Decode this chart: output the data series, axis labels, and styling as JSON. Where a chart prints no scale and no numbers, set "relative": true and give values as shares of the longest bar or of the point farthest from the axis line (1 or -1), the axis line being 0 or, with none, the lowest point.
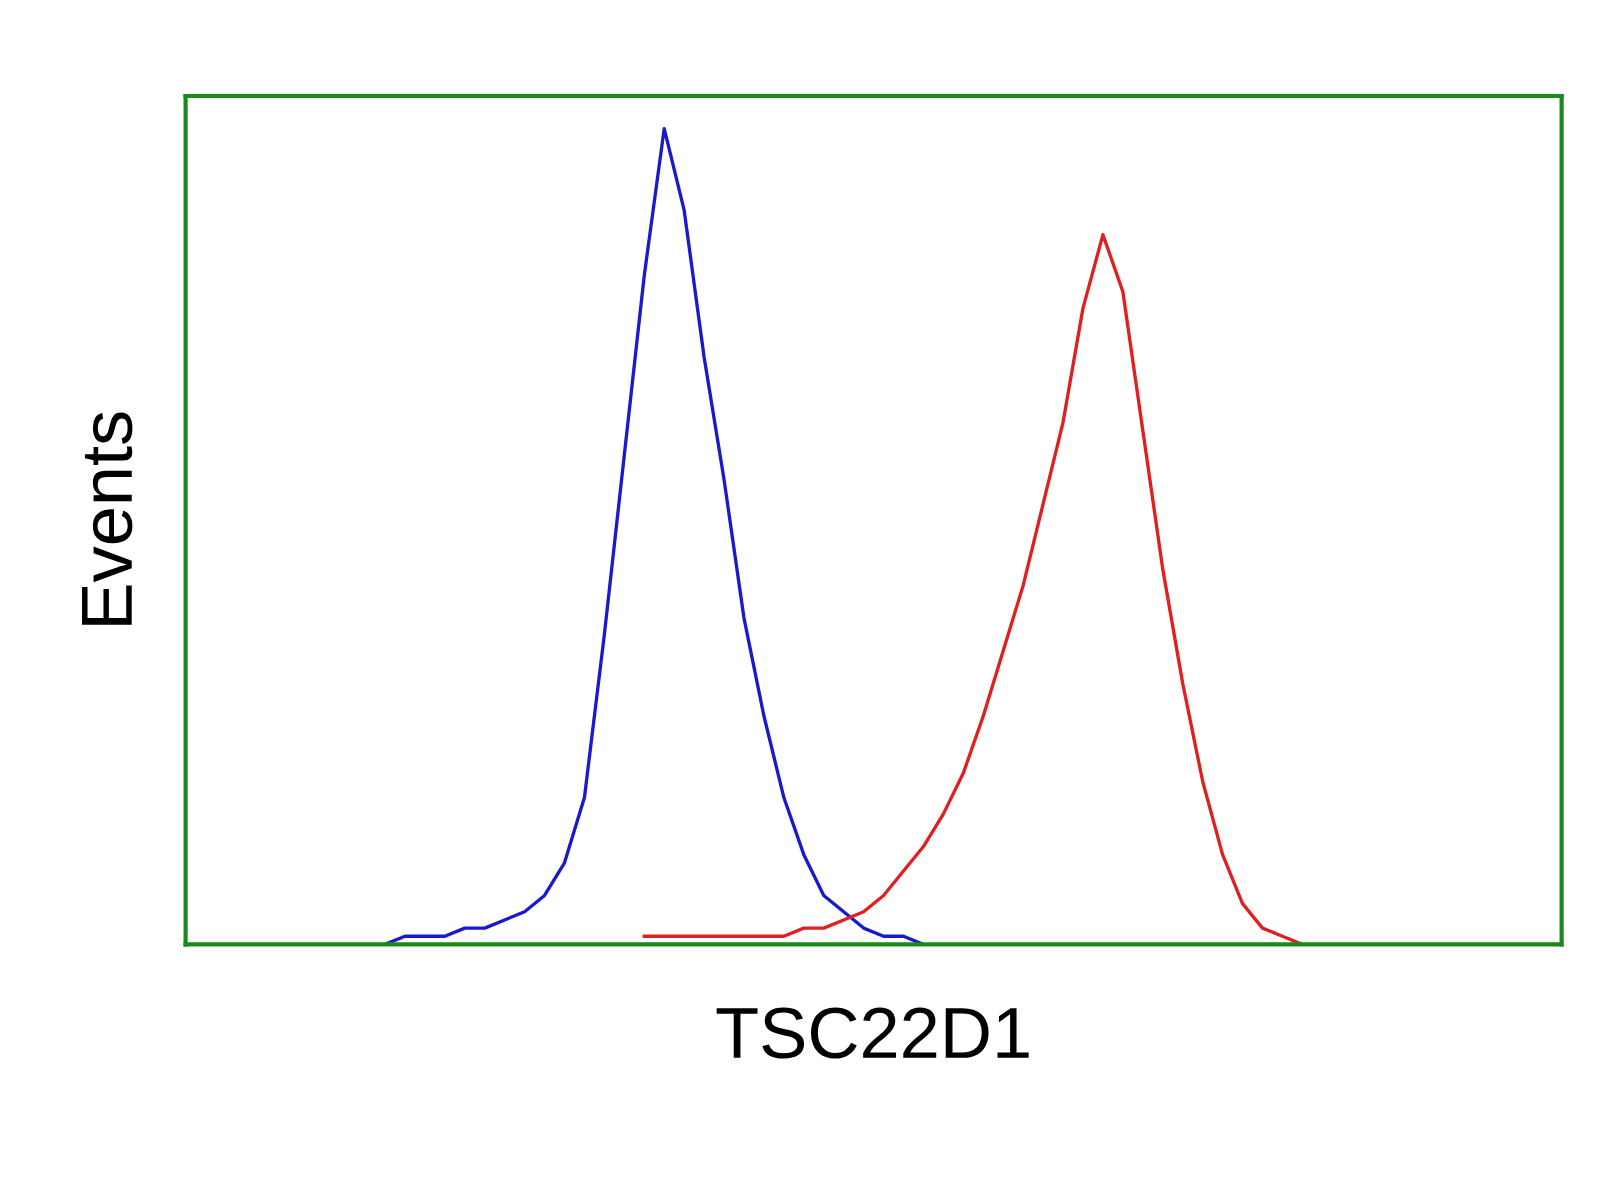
{
  "chart_data": {
    "type": "line",
    "xlabel": "TSC22D1",
    "ylabel": "Events",
    "relative": true,
    "tick_labels": false,
    "grid": false,
    "legend": false,
    "marker": "none",
    "line_style": "solid",
    "categories": [
      null,
      null,
      null,
      null,
      null,
      null,
      null,
      null,
      null,
      null,
      null,
      null,
      null,
      null,
      null,
      null,
      null,
      null,
      null,
      null,
      null,
      null,
      null,
      null,
      null,
      null,
      null,
      null,
      null,
      null,
      null,
      null,
      null,
      null,
      null,
      null,
      null,
      null,
      null,
      null,
      null,
      null,
      null,
      null,
      null,
      null,
      null,
      null,
      null,
      null,
      null,
      null,
      null,
      null,
      null,
      null,
      null,
      null,
      null,
      null,
      null,
      null,
      null,
      null,
      null,
      null,
      null,
      null,
      null,
      null
    ],
    "series": [
      {
        "color": "#1a1acc",
        "values": [
          null,
          null,
          null,
          null,
          null,
          null,
          null,
          null,
          null,
          null,
          0,
          0.01,
          0.01,
          0.01,
          0.02,
          0.02,
          0.03,
          0.04,
          0.06,
          0.1,
          0.18,
          0.38,
          0.6,
          0.82,
          1.0,
          0.9,
          0.72,
          0.57,
          0.4,
          0.28,
          0.18,
          0.11,
          0.06,
          0.04,
          0.02,
          0.01,
          0.01,
          0,
          null,
          null,
          null,
          null,
          null,
          null,
          null,
          null,
          null,
          null,
          null,
          null,
          null,
          null,
          null,
          null,
          null,
          null,
          null,
          null,
          null,
          null,
          null,
          null,
          null,
          null,
          null,
          null,
          null,
          null,
          null,
          null
        ]
      },
      {
        "color": "#e02020",
        "values": [
          null,
          null,
          null,
          null,
          null,
          null,
          null,
          null,
          null,
          null,
          null,
          null,
          null,
          null,
          null,
          null,
          null,
          null,
          null,
          null,
          null,
          null,
          null,
          0.01,
          0.01,
          0.01,
          0.01,
          0.01,
          0.01,
          0.01,
          0.01,
          0.02,
          0.02,
          0.03,
          0.04,
          0.06,
          0.09,
          0.12,
          0.16,
          0.21,
          0.28,
          0.36,
          0.44,
          0.54,
          0.64,
          0.78,
          0.87,
          0.8,
          0.63,
          0.46,
          0.32,
          0.2,
          0.11,
          0.05,
          0.02,
          0.01,
          0,
          null,
          null,
          null,
          null,
          null,
          null,
          null,
          null,
          null,
          null,
          null,
          null,
          null
        ]
      }
    ]
  }
}
